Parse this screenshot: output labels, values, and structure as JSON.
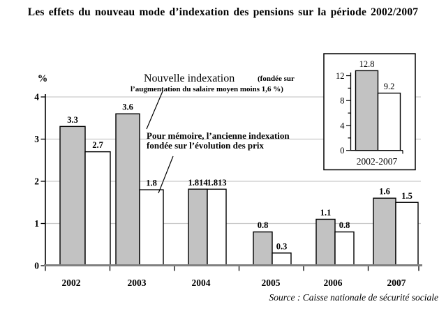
{
  "page": {
    "title": "Les effets du nouveau mode d’indexation des pensions sur la période 2002/2007",
    "source": "Source : Caisse nationale de sécurité sociale"
  },
  "colors": {
    "bar_new": "#c2c2c2",
    "bar_old": "#ffffff",
    "bar_border": "#000000",
    "gridline": "#c9c9c9",
    "x_axis": "#808080",
    "axis_black": "#000000"
  },
  "chart_data": {
    "type": "bar",
    "ylabel": "%",
    "ylim": [
      0,
      4
    ],
    "yticks": [
      0,
      1,
      2,
      3,
      4
    ],
    "grid": true,
    "categories": [
      "2002",
      "2003",
      "2004",
      "2005",
      "2006",
      "2007"
    ],
    "series": [
      {
        "name": "Nouvelle indexation (fondée sur l’augmentation du salaire moyen moins 1,6 %)",
        "values": [
          3.3,
          3.6,
          1.814,
          0.8,
          1.1,
          1.6
        ],
        "labels": [
          "3.3",
          "3.6",
          "1.814",
          "0.8",
          "1.1",
          "1.6"
        ]
      },
      {
        "name": "Pour mémoire, l’ancienne indexation fondée sur l’évolution des prix",
        "values": [
          2.7,
          1.8,
          1.813,
          0.3,
          0.8,
          1.5
        ],
        "labels": [
          "2.7",
          "1.8",
          "1.813",
          "0.3",
          "0.8",
          "1.5"
        ]
      }
    ],
    "annotations": {
      "new_label_main": "Nouvelle indexation",
      "new_label_paren": "(fondée sur",
      "new_label_line2": "l’augmentation du salaire moyen moins 1,6 %)",
      "old_label_line1": "Pour mémoire, l’ancienne indexation",
      "old_label_line2": "fondée sur l’évolution des prix"
    },
    "inset": {
      "category": "2002-2007",
      "values": [
        12.8,
        9.2
      ],
      "labels": [
        "12.8",
        "9.2"
      ],
      "ylim": [
        0,
        14
      ],
      "yticks": [
        0,
        4,
        8,
        12
      ],
      "minor_yticks": [
        2,
        6,
        10
      ]
    }
  }
}
